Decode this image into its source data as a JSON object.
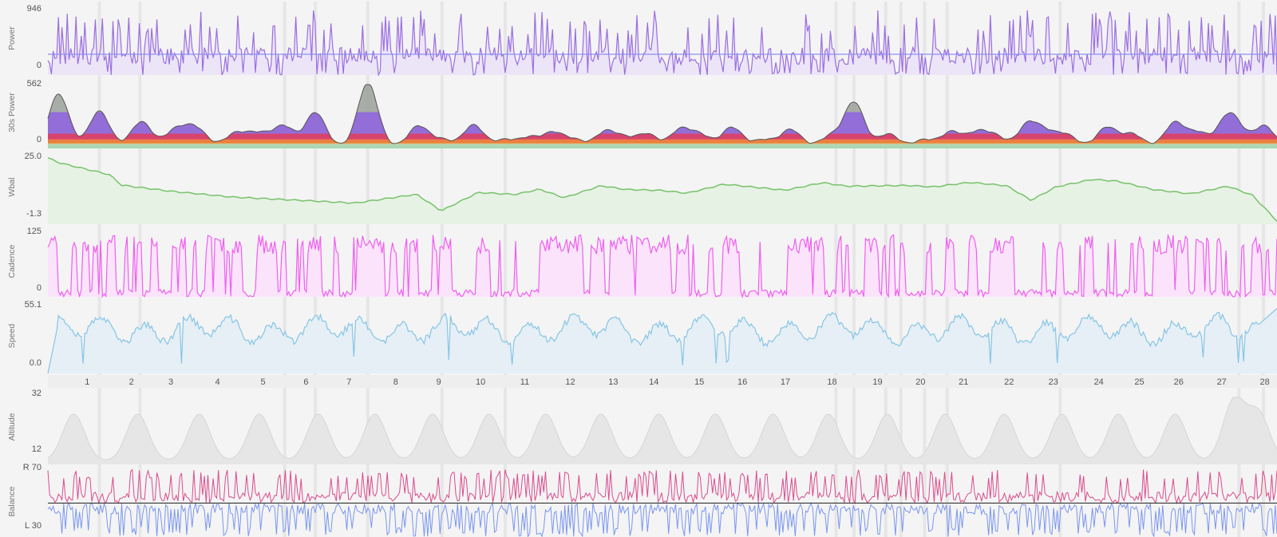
{
  "chart_data": [
    {
      "type": "area",
      "ylabel": "Power",
      "yticks": [
        "946",
        "0"
      ],
      "ylim": [
        0,
        946
      ],
      "average_line": 300,
      "color": "#9a6fe0",
      "fill": "#ece5f8",
      "shape": "spiky",
      "seed": 11,
      "min": 0,
      "max": 946
    },
    {
      "type": "area",
      "ylabel": "30s Power",
      "yticks": [
        "562",
        "0"
      ],
      "ylim": [
        0,
        562
      ],
      "zone_colors": [
        "#9aa09a",
        "#8f62e0",
        "#e43c5c",
        "#f08a3a",
        "#f4c94a",
        "#8fd27a",
        "#7ac9b0"
      ],
      "line_color": "#2f8f3a",
      "peaks": [
        [
          0.012,
          460
        ],
        [
          0.057,
          310
        ],
        [
          0.102,
          120
        ],
        [
          0.105,
          100
        ],
        [
          0.14,
          130
        ],
        [
          0.157,
          90
        ],
        [
          0.167,
          100
        ],
        [
          0.207,
          110
        ],
        [
          0.228,
          90
        ],
        [
          0.262,
          170
        ],
        [
          0.243,
          60
        ],
        [
          0.296,
          300
        ],
        [
          0.354,
          560
        ],
        [
          0.41,
          180
        ],
        [
          0.436,
          60
        ],
        [
          0.471,
          190
        ],
        [
          0.506,
          60
        ],
        [
          0.533,
          80
        ],
        [
          0.559,
          120
        ],
        [
          0.582,
          60
        ],
        [
          0.617,
          130
        ],
        [
          0.638,
          70
        ],
        [
          0.663,
          110
        ],
        [
          0.7,
          150
        ],
        [
          0.722,
          100
        ],
        [
          0.757,
          170
        ],
        [
          0.792,
          60
        ],
        [
          0.822,
          150
        ],
        [
          0.866,
          90
        ],
        [
          0.892,
          390
        ],
        [
          0.93,
          110
        ],
        [
          0.97,
          60
        ],
        [
          1.0,
          130
        ],
        [
          1.028,
          120
        ],
        [
          1.048,
          90
        ],
        [
          1.085,
          200
        ],
        [
          1.105,
          110
        ],
        [
          1.127,
          100
        ],
        [
          1.172,
          170
        ],
        [
          1.2,
          110
        ],
        [
          1.247,
          210
        ],
        [
          1.273,
          120
        ],
        [
          1.305,
          240
        ],
        [
          1.318,
          100
        ],
        [
          1.346,
          180
        ]
      ],
      "min": 0,
      "max": 562
    },
    {
      "type": "line",
      "ylabel": "Wbal",
      "yticks": [
        "25.0",
        "-1.3"
      ],
      "ylim": [
        -1.3,
        25.0
      ],
      "color": "#77c26a",
      "fill": "#e6f2e4",
      "x": [
        0,
        0.01,
        0.05,
        0.06,
        0.1,
        0.15,
        0.2,
        0.25,
        0.3,
        0.32,
        0.35,
        0.38,
        0.4,
        0.42,
        0.45,
        0.47,
        0.5,
        0.52,
        0.55,
        0.6,
        0.63,
        0.65,
        0.7,
        0.72,
        0.75,
        0.78,
        0.8,
        0.82,
        0.85,
        0.87,
        0.9,
        0.93,
        0.96,
        0.98,
        1.0
      ],
      "y": [
        25.0,
        23.0,
        18.4,
        14.2,
        11.8,
        9.5,
        8.3,
        7.1,
        10.6,
        4.0,
        11.3,
        10.5,
        12.6,
        9.2,
        14.0,
        12.5,
        12.1,
        11.0,
        14.6,
        12.2,
        15.2,
        13.8,
        14.1,
        13.5,
        15.3,
        14.0,
        8.2,
        13.5,
        16.5,
        15.8,
        12.4,
        10.8,
        13.8,
        10.2,
        0.0
      ],
      "min": -1.3,
      "max": 25.0
    },
    {
      "type": "area",
      "ylabel": "Cadence",
      "yticks": [
        "125",
        "0"
      ],
      "ylim": [
        0,
        125
      ],
      "color": "#f05ef0",
      "fill": "#fbe4fb",
      "shape": "square",
      "seed": 23,
      "min": 0,
      "max": 125
    },
    {
      "type": "line",
      "ylabel": "Speed",
      "yticks": [
        "55.1",
        "0.0"
      ],
      "ylim": [
        0,
        55.1
      ],
      "color": "#86c5e6",
      "fill": "#e5eff5",
      "shape": "wavy",
      "seed": 37,
      "min": 0,
      "max": 55.1
    },
    {
      "type": "area",
      "ylabel": "Altitude",
      "yticks": [
        "32",
        "12"
      ],
      "ylim": [
        12,
        32
      ],
      "color": "#d6d6d6",
      "fill": "#e6e6e6",
      "hill_centers": [
        0.021,
        0.073,
        0.123,
        0.172,
        0.22,
        0.266,
        0.313,
        0.359,
        0.405,
        0.45,
        0.497,
        0.543,
        0.59,
        0.635,
        0.683,
        0.73,
        0.778,
        0.825,
        0.871,
        0.917,
        0.965,
        0.985
      ],
      "min": 12,
      "max": 32
    },
    {
      "type": "area",
      "ylabel": "Balance",
      "yticks": [
        "R 70",
        "L 30"
      ],
      "ylim": [
        30,
        70
      ],
      "right_color": "#dc4b8c",
      "left_color": "#7a96f0",
      "seed": 51,
      "min": 30,
      "max": 70
    }
  ],
  "lap_labels": [
    "1",
    "2",
    "3",
    "4",
    "5",
    "6",
    "7",
    "8",
    "9",
    "10",
    "11",
    "12",
    "13",
    "14",
    "15",
    "16",
    "17",
    "18",
    "19",
    "20",
    "21",
    "22",
    "23",
    "24",
    "25",
    "26",
    "27",
    "28"
  ],
  "lap_positions": [
    0.032,
    0.068,
    0.1,
    0.138,
    0.175,
    0.21,
    0.245,
    0.283,
    0.318,
    0.352,
    0.388,
    0.425,
    0.46,
    0.493,
    0.53,
    0.565,
    0.6,
    0.638,
    0.675,
    0.71,
    0.745,
    0.782,
    0.818,
    0.855,
    0.888,
    0.92,
    0.955,
    0.99
  ],
  "lap_markers": [
    0.057,
    0.102,
    0.262,
    0.296,
    0.354,
    0.436,
    0.506,
    0.872,
    0.892,
    0.927,
    0.944,
    0.97,
    0.995,
    1.12,
    1.318,
    1.345
  ]
}
